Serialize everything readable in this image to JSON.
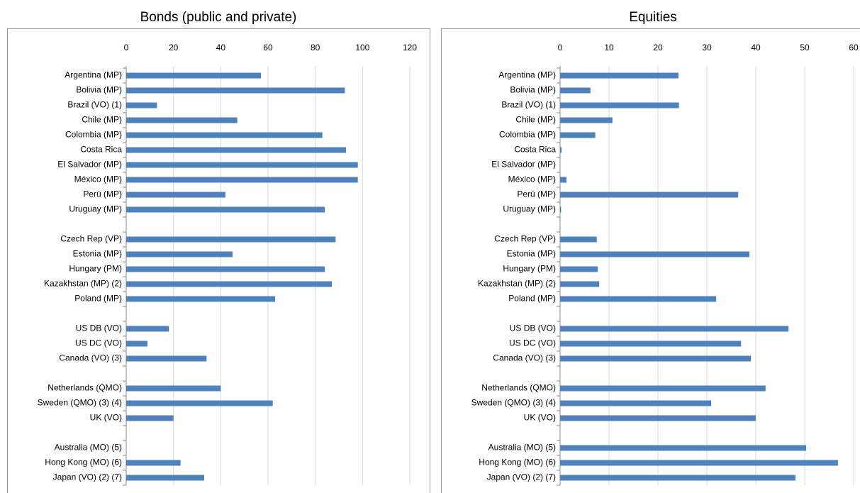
{
  "chart_data": [
    {
      "type": "bar",
      "orientation": "horizontal",
      "title": "Bonds (public and private)",
      "color": "#4f81bd",
      "grid": true,
      "categories": [
        "Argentina (MP)",
        "Bolivia (MP)",
        "Brazil (VO) (1)",
        "Chile (MP)",
        "Colombia (MP)",
        "Costa Rica",
        "El Salvador (MP)",
        "México (MP)",
        "Perú (MP)",
        "Uruguay (MP)",
        null,
        "Czech Rep (VP)",
        "Estonia (MP)",
        "Hungary (PM)",
        "Kazakhstan (MP) (2)",
        "Poland (MP)",
        null,
        "US DB (VO)",
        "US DC (VO)",
        "Canada (VO) (3)",
        null,
        "Netherlands (QMO)",
        "Sweden (QMO) (3) (4)",
        "UK (VO)",
        null,
        "Australia (MO) (5)",
        "Hong Kong (MO) (6)",
        "Japan (VO) (2) (7)"
      ],
      "values": [
        57,
        92.5,
        13,
        47,
        83,
        93,
        98,
        98,
        42,
        84,
        null,
        88.6,
        45,
        84,
        87,
        63,
        null,
        18,
        9,
        34,
        null,
        40,
        62,
        20,
        null,
        null,
        23,
        33
      ],
      "xlim": [
        0,
        120
      ],
      "xticks": [
        0,
        20,
        40,
        60,
        80,
        100,
        120
      ]
    },
    {
      "type": "bar",
      "orientation": "horizontal",
      "title": "Equities",
      "color": "#4f81bd",
      "grid": true,
      "categories": [
        "Argentina (MP)",
        "Bolivia (MP)",
        "Brazil (VO) (1)",
        "Chile (MP)",
        "Colombia (MP)",
        "Costa Rica",
        "El Salvador (MP)",
        "México (MP)",
        "Perú (MP)",
        "Uruguay (MP)",
        null,
        "Czech Rep (VP)",
        "Estonia (MP)",
        "Hungary (PM)",
        "Kazakhstan (MP) (2)",
        "Poland (MP)",
        null,
        "US DB (VO)",
        "US DC (VO)",
        "Canada (VO) (3)",
        null,
        "Netherlands (QMO)",
        "Sweden (QMO) (3) (4)",
        "UK (VO)",
        null,
        "Australia (MO) (5)",
        "Hong Kong (MO) (6)",
        "Japan (VO) (2) (7)"
      ],
      "values": [
        24.2,
        6.2,
        24.3,
        10.7,
        7.2,
        0.3,
        null,
        1.3,
        36.4,
        0.2,
        null,
        7.5,
        38.7,
        7.7,
        8,
        31.9,
        null,
        46.7,
        37,
        39,
        null,
        42,
        30.9,
        40,
        null,
        50.3,
        56.8,
        48.1
      ],
      "xlim": [
        0,
        60
      ],
      "xticks": [
        0,
        10,
        20,
        30,
        40,
        50,
        60
      ]
    }
  ]
}
